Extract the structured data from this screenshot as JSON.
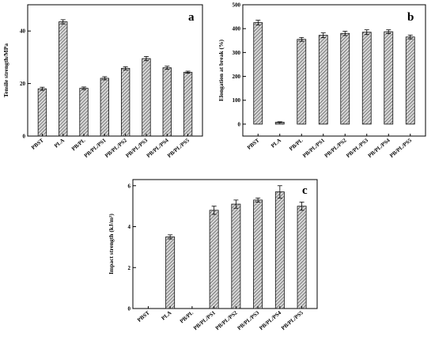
{
  "chart_data": [
    {
      "type": "bar",
      "panel_label": "a",
      "ylabel": "Tensile strength/MPa",
      "categories": [
        "PBST",
        "PLA",
        "PB/PL",
        "PB/PL/PS1",
        "PB/PL/PS2",
        "PB/PL/PS3",
        "PB/PL/PS4",
        "PB/PL/PS5"
      ],
      "values": [
        18.0,
        43.5,
        18.2,
        22.0,
        25.8,
        29.5,
        26.0,
        24.3
      ],
      "errors": [
        0.6,
        0.8,
        0.5,
        0.6,
        0.6,
        0.8,
        0.6,
        0.4
      ],
      "ylim": [
        0,
        50
      ],
      "yticks": [
        0,
        20,
        40
      ],
      "grid": false
    },
    {
      "type": "bar",
      "panel_label": "b",
      "ylabel": "Elongation at break (%)",
      "categories": [
        "PBST",
        "PLA",
        "PB/PL",
        "PB/PL/PS1",
        "PB/PL/PS2",
        "PB/PL/PS3",
        "PB/PL/PS4",
        "PB/PL/PS5"
      ],
      "values": [
        425,
        8,
        355,
        372,
        380,
        385,
        387,
        365
      ],
      "errors": [
        10,
        2,
        8,
        10,
        9,
        10,
        8,
        8
      ],
      "ylim": [
        -50,
        500
      ],
      "yticks": [
        0,
        100,
        200,
        300,
        400,
        500
      ],
      "grid": false
    },
    {
      "type": "bar",
      "panel_label": "c",
      "ylabel": "Impact strength (kJ/m²)",
      "categories": [
        "PBST",
        "PLA",
        "PB/PL",
        "PB/PL/PS1",
        "PB/PL/PS2",
        "PB/PL/PS3",
        "PB/PL/PS4",
        "PB/PL/PS5"
      ],
      "values": [
        null,
        3.5,
        null,
        4.8,
        5.1,
        5.3,
        5.7,
        5.0
      ],
      "errors": [
        null,
        0.1,
        null,
        0.2,
        0.2,
        0.1,
        0.3,
        0.2
      ],
      "ylim": [
        0,
        6.3
      ],
      "yticks": [
        0,
        2,
        4,
        6
      ],
      "grid": false
    }
  ]
}
